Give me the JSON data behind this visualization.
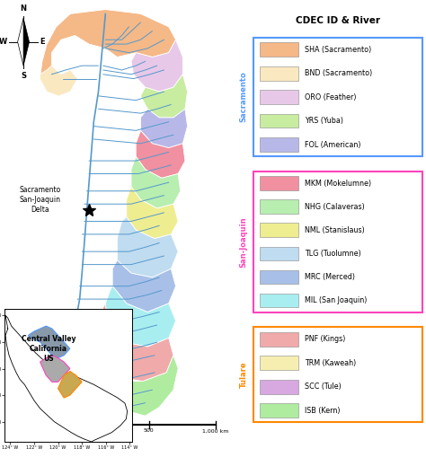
{
  "title": "CDEC ID & River",
  "sacramento_label": "Sacramento",
  "san_joaquin_label": "San-Joaquin",
  "tulare_label": "Tulare",
  "sacramento_rivers": [
    {
      "id": "SHA",
      "name": "Sacramento",
      "color": "#F5B887"
    },
    {
      "id": "BND",
      "name": "Sacramento",
      "color": "#FAE8C0"
    },
    {
      "id": "ORO",
      "name": "Feather",
      "color": "#E8C8E8"
    },
    {
      "id": "YRS",
      "name": "Yuba",
      "color": "#C8ECA0"
    },
    {
      "id": "FOL",
      "name": "American",
      "color": "#B8B8E8"
    }
  ],
  "sj_rivers": [
    {
      "id": "MKM",
      "name": "Mokelumne",
      "color": "#F090A0"
    },
    {
      "id": "NHG",
      "name": "Calaveras",
      "color": "#B8EEB0"
    },
    {
      "id": "NML",
      "name": "Stanislaus",
      "color": "#EEED90"
    },
    {
      "id": "TLG",
      "name": "Tuolumne",
      "color": "#C0DCF0"
    },
    {
      "id": "MRC",
      "name": "Merced",
      "color": "#A8C0E8"
    },
    {
      "id": "MIL",
      "name": "San Joaquin",
      "color": "#A8EEF0"
    }
  ],
  "tulare_rivers": [
    {
      "id": "PNF",
      "name": "Kings",
      "color": "#F0AAAA"
    },
    {
      "id": "TRM",
      "name": "Kaweah",
      "color": "#F5EEB0"
    },
    {
      "id": "SCC",
      "name": "Tule",
      "color": "#D8A8E0"
    },
    {
      "id": "ISB",
      "name": "Kern",
      "color": "#B0ECA0"
    }
  ],
  "sac_box_color": "#5599FF",
  "sj_box_color": "#FF44BB",
  "tulare_box_color": "#FF8800",
  "sac_label_color": "#5599FF",
  "sj_label_color": "#FF44BB",
  "tulare_label_color": "#FF8800",
  "river_color": "#5599CC",
  "delta_label": "Sacramento\nSan-Joaquin\nDelta",
  "inset_title": "Central Valley\nCalifornia\nUS"
}
